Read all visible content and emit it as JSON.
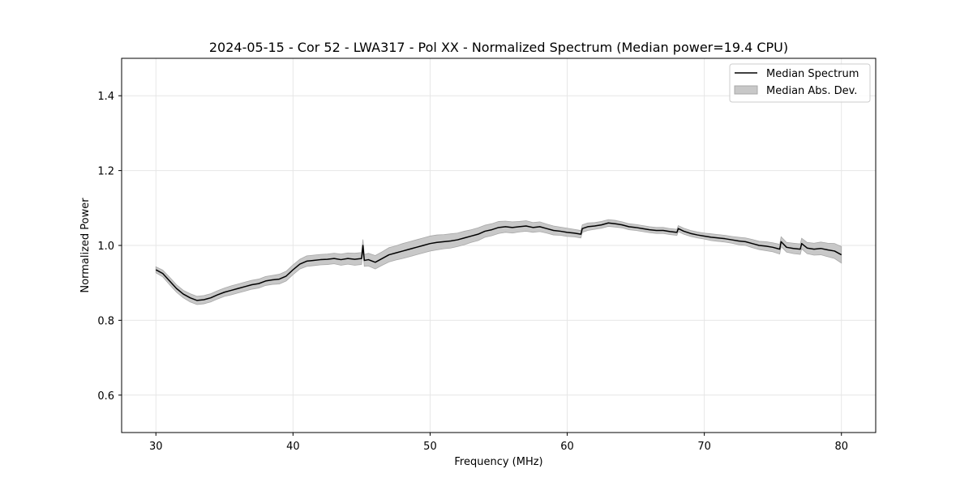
{
  "chart_data": {
    "type": "line",
    "title": "2024-05-15 - Cor 52 - LWA317 - Pol XX - Normalized Spectrum (Median power=19.4 CPU)",
    "xlabel": "Frequency (MHz)",
    "ylabel": "Normalized Power",
    "xlim": [
      27.5,
      82.5
    ],
    "ylim": [
      0.5,
      1.5
    ],
    "xticks": [
      30,
      40,
      50,
      60,
      70,
      80
    ],
    "yticks": [
      0.6,
      0.8,
      1.0,
      1.2,
      1.4
    ],
    "xtick_labels": [
      "30",
      "40",
      "50",
      "60",
      "70",
      "80"
    ],
    "ytick_labels": [
      "0.6",
      "0.8",
      "1.0",
      "1.2",
      "1.4"
    ],
    "grid": true,
    "legend_position": "top-right",
    "colors": {
      "median": "#000000",
      "band_fill": "#c8c8c8",
      "band_edge": "#a8a8a8",
      "grid": "#e6e6e6"
    },
    "series": [
      {
        "name": "Median Spectrum",
        "kind": "line",
        "x": [
          30.0,
          30.5,
          31.0,
          31.5,
          32.0,
          32.5,
          33.0,
          33.5,
          34.0,
          34.5,
          35.0,
          35.5,
          36.0,
          36.5,
          37.0,
          37.5,
          38.0,
          38.5,
          39.0,
          39.5,
          40.0,
          40.5,
          41.0,
          41.5,
          42.0,
          42.5,
          43.0,
          43.5,
          44.0,
          44.5,
          45.0,
          45.1,
          45.2,
          45.5,
          46.0,
          46.5,
          47.0,
          47.5,
          48.0,
          48.5,
          49.0,
          49.5,
          50.0,
          50.5,
          51.0,
          51.5,
          52.0,
          52.5,
          53.0,
          53.5,
          54.0,
          54.5,
          55.0,
          55.5,
          56.0,
          56.5,
          57.0,
          57.5,
          58.0,
          58.5,
          59.0,
          59.5,
          60.0,
          60.5,
          61.0,
          61.1,
          61.5,
          62.0,
          62.5,
          63.0,
          63.5,
          64.0,
          64.5,
          65.0,
          65.5,
          66.0,
          66.5,
          67.0,
          67.5,
          68.0,
          68.1,
          68.5,
          69.0,
          69.5,
          70.0,
          70.5,
          71.0,
          71.5,
          72.0,
          72.5,
          73.0,
          73.5,
          74.0,
          74.5,
          75.0,
          75.5,
          75.6,
          76.0,
          76.5,
          77.0,
          77.1,
          77.5,
          78.0,
          78.5,
          79.0,
          79.5,
          80.0
        ],
        "y": [
          0.935,
          0.925,
          0.905,
          0.885,
          0.87,
          0.86,
          0.853,
          0.855,
          0.86,
          0.868,
          0.875,
          0.88,
          0.885,
          0.89,
          0.895,
          0.898,
          0.905,
          0.908,
          0.91,
          0.918,
          0.935,
          0.95,
          0.958,
          0.96,
          0.962,
          0.963,
          0.965,
          0.962,
          0.965,
          0.963,
          0.965,
          1.0,
          0.96,
          0.962,
          0.955,
          0.965,
          0.975,
          0.98,
          0.985,
          0.99,
          0.995,
          1.0,
          1.005,
          1.008,
          1.01,
          1.012,
          1.015,
          1.02,
          1.025,
          1.03,
          1.038,
          1.042,
          1.048,
          1.05,
          1.048,
          1.05,
          1.052,
          1.048,
          1.05,
          1.045,
          1.04,
          1.038,
          1.035,
          1.033,
          1.03,
          1.045,
          1.05,
          1.052,
          1.055,
          1.06,
          1.058,
          1.055,
          1.05,
          1.048,
          1.045,
          1.042,
          1.04,
          1.04,
          1.037,
          1.035,
          1.045,
          1.038,
          1.032,
          1.028,
          1.025,
          1.022,
          1.02,
          1.018,
          1.015,
          1.012,
          1.01,
          1.005,
          1.0,
          0.998,
          0.995,
          0.99,
          1.01,
          0.995,
          0.992,
          0.99,
          1.005,
          0.993,
          0.99,
          0.992,
          0.988,
          0.985,
          0.975
        ]
      },
      {
        "name": "Median Abs. Dev.",
        "kind": "band",
        "halfwidth": [
          0.008,
          0.009,
          0.01,
          0.01,
          0.01,
          0.011,
          0.011,
          0.011,
          0.011,
          0.011,
          0.011,
          0.012,
          0.012,
          0.012,
          0.012,
          0.012,
          0.012,
          0.012,
          0.013,
          0.013,
          0.013,
          0.013,
          0.014,
          0.014,
          0.014,
          0.014,
          0.014,
          0.015,
          0.015,
          0.016,
          0.016,
          0.016,
          0.016,
          0.017,
          0.018,
          0.018,
          0.019,
          0.019,
          0.02,
          0.02,
          0.02,
          0.02,
          0.02,
          0.02,
          0.019,
          0.019,
          0.018,
          0.018,
          0.017,
          0.017,
          0.016,
          0.016,
          0.016,
          0.015,
          0.015,
          0.014,
          0.014,
          0.013,
          0.013,
          0.012,
          0.012,
          0.011,
          0.011,
          0.01,
          0.01,
          0.01,
          0.01,
          0.009,
          0.009,
          0.009,
          0.009,
          0.008,
          0.008,
          0.008,
          0.008,
          0.008,
          0.008,
          0.008,
          0.008,
          0.008,
          0.008,
          0.008,
          0.008,
          0.008,
          0.008,
          0.009,
          0.009,
          0.009,
          0.009,
          0.01,
          0.01,
          0.011,
          0.011,
          0.012,
          0.012,
          0.013,
          0.013,
          0.013,
          0.014,
          0.014,
          0.014,
          0.015,
          0.016,
          0.017,
          0.018,
          0.02,
          0.022
        ]
      }
    ]
  }
}
